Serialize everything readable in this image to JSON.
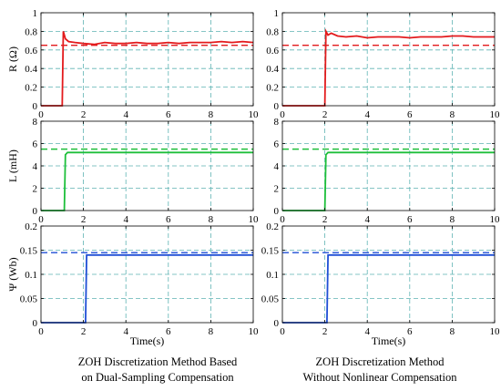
{
  "chart_data": [
    {
      "id": "r-left",
      "type": "line",
      "ylabel": "R (Ω)",
      "ylim": [
        0,
        1
      ],
      "yticks": [
        0,
        0.2,
        0.4,
        0.6,
        0.8,
        1
      ],
      "xlim": [
        0,
        10
      ],
      "xticks": [
        0,
        2,
        4,
        6,
        8,
        10
      ],
      "xlabel": "",
      "color": "#e31a1c",
      "reference": 0.65,
      "x": [
        0,
        1,
        1.05,
        1.15,
        1.3,
        1.6,
        2,
        2.5,
        3,
        3.5,
        4,
        4.5,
        5,
        5.5,
        6,
        6.5,
        7,
        7.5,
        8,
        8.5,
        9,
        9.5,
        10
      ],
      "y": [
        0,
        0,
        0.8,
        0.72,
        0.69,
        0.68,
        0.67,
        0.66,
        0.68,
        0.67,
        0.67,
        0.68,
        0.67,
        0.67,
        0.68,
        0.67,
        0.68,
        0.68,
        0.68,
        0.69,
        0.68,
        0.69,
        0.68
      ]
    },
    {
      "id": "r-right",
      "type": "line",
      "ylabel": "",
      "ylim": [
        0,
        1
      ],
      "yticks": [
        0,
        0.2,
        0.4,
        0.6,
        0.8,
        1
      ],
      "xlim": [
        0,
        10
      ],
      "xticks": [
        0,
        2,
        4,
        6,
        8,
        10
      ],
      "xlabel": "",
      "color": "#e31a1c",
      "reference": 0.65,
      "x": [
        0,
        2,
        2.05,
        2.15,
        2.3,
        2.6,
        3,
        3.5,
        4,
        4.5,
        5,
        5.5,
        6,
        6.5,
        7,
        7.5,
        8,
        8.5,
        9,
        9.5,
        10
      ],
      "y": [
        0,
        0,
        0.8,
        0.76,
        0.78,
        0.75,
        0.74,
        0.75,
        0.73,
        0.74,
        0.74,
        0.74,
        0.73,
        0.74,
        0.74,
        0.74,
        0.75,
        0.75,
        0.74,
        0.74,
        0.74
      ]
    },
    {
      "id": "l-left",
      "type": "line",
      "ylabel": "L (mH)",
      "ylim": [
        0,
        8
      ],
      "yticks": [
        0,
        2,
        4,
        6,
        8
      ],
      "xlim": [
        0,
        10
      ],
      "xticks": [
        0,
        2,
        4,
        6,
        8,
        10
      ],
      "xlabel": "",
      "color": "#1dbf3a",
      "reference": 5.5,
      "x": [
        0,
        1.1,
        1.15,
        1.25,
        10
      ],
      "y": [
        0,
        0,
        5.0,
        5.2,
        5.2
      ]
    },
    {
      "id": "l-right",
      "type": "line",
      "ylabel": "",
      "ylim": [
        0,
        8
      ],
      "yticks": [
        0,
        2,
        4,
        6,
        8
      ],
      "xlim": [
        0,
        10
      ],
      "xticks": [
        0,
        2,
        4,
        6,
        8,
        10
      ],
      "xlabel": "",
      "color": "#1dbf3a",
      "reference": 5.5,
      "x": [
        0,
        2,
        2.05,
        2.15,
        10
      ],
      "y": [
        0,
        0,
        5.0,
        5.2,
        5.2
      ]
    },
    {
      "id": "psi-left",
      "type": "line",
      "ylabel": "Ψ (Wb)",
      "ylim": [
        0,
        0.2
      ],
      "yticks": [
        0,
        0.05,
        0.1,
        0.15,
        0.2
      ],
      "xlim": [
        0,
        10
      ],
      "xticks": [
        0,
        2,
        4,
        6,
        8,
        10
      ],
      "xlabel": "Time(s)",
      "color": "#1f4fd6",
      "reference": 0.145,
      "x": [
        0,
        2.1,
        2.15,
        10
      ],
      "y": [
        0,
        0,
        0.14,
        0.14
      ]
    },
    {
      "id": "psi-right",
      "type": "line",
      "ylabel": "",
      "ylim": [
        0,
        0.2
      ],
      "yticks": [
        0,
        0.05,
        0.1,
        0.15,
        0.2
      ],
      "xlim": [
        0,
        10
      ],
      "xticks": [
        0,
        2,
        4,
        6,
        8,
        10
      ],
      "xlabel": "Time(s)",
      "color": "#1f4fd6",
      "reference": 0.145,
      "x": [
        0,
        2.1,
        2.15,
        10
      ],
      "y": [
        0,
        0,
        0.14,
        0.14
      ]
    }
  ],
  "captions": {
    "left_line1": "ZOH Discretization Method Based",
    "left_line2": "on Dual-Sampling Compensation",
    "right_line1": "ZOH Discretization Method",
    "right_line2": "Without Nonlinear Compensation"
  },
  "grid": true,
  "grid_color": "#5fb3b3",
  "frame_color": "#000000"
}
